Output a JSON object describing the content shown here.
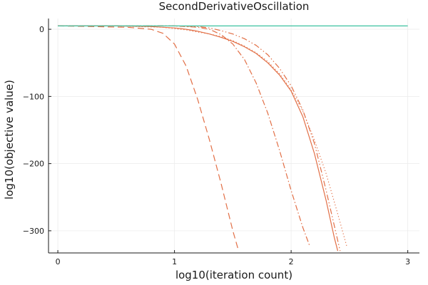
{
  "chart_data": {
    "type": "line",
    "title": "SecondDerivativeOscillation",
    "xlabel": "log10(iteration count)",
    "ylabel": "log10(objective value)",
    "xlim": [
      -0.08,
      3.1
    ],
    "ylim": [
      -333,
      16
    ],
    "x_ticks": [
      0,
      1,
      2,
      3
    ],
    "x_tick_labels": [
      "0",
      "1",
      "2",
      "3"
    ],
    "y_ticks": [
      0,
      -100,
      -200,
      -300
    ],
    "y_tick_labels": [
      "0",
      "−100",
      "−200",
      "−300"
    ],
    "grid": true,
    "legend": "none",
    "colors": {
      "orange": "#e26f46",
      "teal": "#3cc1a0"
    },
    "series": [
      {
        "style": "solid",
        "color": "#e26f46",
        "x": [
          0,
          0.5,
          0.8,
          1.0,
          1.1,
          1.2,
          1.3,
          1.4,
          1.5,
          1.6,
          1.7,
          1.8,
          1.9,
          2.0,
          2.1,
          2.2,
          2.3,
          2.37,
          2.4
        ],
        "y": [
          5,
          5,
          4,
          2,
          0,
          -3,
          -7,
          -12,
          -18,
          -26,
          -36,
          -50,
          -68,
          -92,
          -130,
          -185,
          -255,
          -310,
          -330
        ]
      },
      {
        "style": "dashed",
        "color": "#e26f46",
        "x": [
          0,
          0.3,
          0.6,
          0.8,
          0.9,
          1.0,
          1.1,
          1.2,
          1.3,
          1.4,
          1.5,
          1.55
        ],
        "y": [
          5,
          4,
          3,
          0,
          -6,
          -22,
          -55,
          -105,
          -165,
          -230,
          -300,
          -330
        ]
      },
      {
        "style": "dotted",
        "color": "#e26f46",
        "x": [
          0,
          0.5,
          0.9,
          1.0,
          1.1,
          1.2,
          1.3,
          1.4,
          1.5,
          1.6,
          1.7,
          1.8,
          1.9,
          2.0,
          2.1,
          2.2,
          2.3,
          2.4,
          2.48
        ],
        "y": [
          5,
          5,
          3,
          1,
          -1,
          -4,
          -7,
          -11,
          -17,
          -25,
          -35,
          -48,
          -66,
          -90,
          -122,
          -165,
          -215,
          -275,
          -325
        ]
      },
      {
        "style": "dashdot",
        "color": "#e26f46",
        "x": [
          0,
          0.5,
          1.0,
          1.2,
          1.3,
          1.4,
          1.5,
          1.6,
          1.7,
          1.8,
          1.9,
          2.0,
          2.1,
          2.16
        ],
        "y": [
          5,
          5,
          5,
          3,
          0,
          -8,
          -22,
          -45,
          -80,
          -125,
          -180,
          -240,
          -295,
          -323
        ]
      },
      {
        "style": "dashdotdot",
        "color": "#e26f46",
        "x": [
          0,
          0.5,
          1.0,
          1.2,
          1.3,
          1.4,
          1.5,
          1.6,
          1.7,
          1.8,
          1.9,
          2.0,
          2.1,
          2.2,
          2.3,
          2.38,
          2.42
        ],
        "y": [
          5,
          5,
          5,
          4,
          2,
          -2,
          -7,
          -14,
          -24,
          -38,
          -58,
          -84,
          -120,
          -170,
          -240,
          -300,
          -330
        ]
      },
      {
        "style": "solid",
        "color": "#3cc1a0",
        "x": [
          0,
          3
        ],
        "y": [
          5,
          5
        ]
      }
    ]
  }
}
